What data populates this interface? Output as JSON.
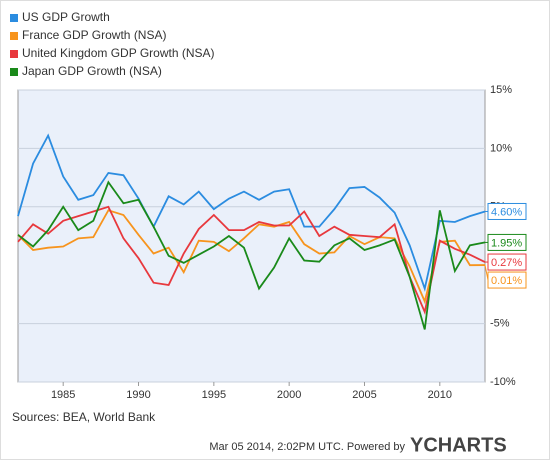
{
  "chart_data": {
    "type": "line",
    "x": [
      1982,
      1983,
      1984,
      1985,
      1986,
      1987,
      1988,
      1989,
      1990,
      1991,
      1992,
      1993,
      1994,
      1995,
      1996,
      1997,
      1998,
      1999,
      2000,
      2001,
      2002,
      2003,
      2004,
      2005,
      2006,
      2007,
      2008,
      2009,
      2010,
      2011,
      2012,
      2013
    ],
    "series": [
      {
        "name": "US GDP Growth",
        "color": "#2b8ce0",
        "values": [
          4.2,
          8.7,
          11.1,
          7.6,
          5.6,
          6.0,
          7.9,
          7.7,
          5.7,
          3.3,
          5.9,
          5.2,
          6.3,
          4.8,
          5.7,
          6.3,
          5.6,
          6.3,
          6.5,
          3.3,
          3.3,
          4.8,
          6.6,
          6.7,
          5.8,
          4.5,
          1.7,
          -2.0,
          3.8,
          3.7,
          4.2,
          4.6
        ],
        "value_labels": [
          null,
          null,
          null,
          null,
          null,
          null,
          null,
          null,
          null,
          null,
          null,
          null,
          null,
          null,
          null,
          null,
          null,
          null,
          null,
          null,
          null,
          null,
          null,
          null,
          null,
          null,
          null,
          null,
          null,
          null,
          null,
          "4.60%"
        ]
      },
      {
        "name": "France GDP Growth (NSA)",
        "color": "#f7941d",
        "values": [
          2.6,
          1.3,
          1.5,
          1.6,
          2.3,
          2.4,
          4.7,
          4.3,
          2.6,
          1.0,
          1.5,
          -0.6,
          2.1,
          2.0,
          1.2,
          2.3,
          3.5,
          3.3,
          3.7,
          1.8,
          1.0,
          1.1,
          2.5,
          1.8,
          2.4,
          2.3,
          -0.1,
          -3.1,
          2.0,
          2.1,
          0.0,
          0.01
        ],
        "value_labels": [
          null,
          null,
          null,
          null,
          null,
          null,
          null,
          null,
          null,
          null,
          null,
          null,
          null,
          null,
          null,
          null,
          null,
          null,
          null,
          null,
          null,
          null,
          null,
          null,
          null,
          null,
          null,
          null,
          null,
          null,
          null,
          "0.01%"
        ]
      },
      {
        "name": "United Kingdom GDP Growth (NSA)",
        "color": "#e8383d",
        "values": [
          2.0,
          3.5,
          2.7,
          3.8,
          4.2,
          4.6,
          5.0,
          2.3,
          0.6,
          -1.5,
          -1.7,
          1.0,
          3.1,
          4.3,
          3.0,
          3.0,
          3.7,
          3.4,
          3.4,
          4.6,
          2.5,
          3.3,
          2.6,
          2.5,
          2.4,
          3.5,
          -1.0,
          -4.0,
          2.1,
          1.4,
          0.9,
          0.27
        ],
        "value_labels": [
          null,
          null,
          null,
          null,
          null,
          null,
          null,
          null,
          null,
          null,
          null,
          null,
          null,
          null,
          null,
          null,
          null,
          null,
          null,
          null,
          null,
          null,
          null,
          null,
          null,
          null,
          null,
          null,
          null,
          null,
          null,
          "0.27%"
        ]
      },
      {
        "name": "Japan GDP Growth (NSA)",
        "color": "#1a8a1a",
        "values": [
          2.6,
          1.6,
          3.0,
          5.0,
          3.0,
          3.8,
          7.1,
          5.3,
          5.6,
          3.3,
          0.8,
          0.2,
          0.9,
          1.6,
          2.5,
          1.5,
          -2.0,
          -0.2,
          2.3,
          0.4,
          0.3,
          1.7,
          2.3,
          1.3,
          1.7,
          2.2,
          -1.0,
          -5.5,
          4.7,
          -0.5,
          1.7,
          1.95
        ],
        "value_labels": [
          null,
          null,
          null,
          null,
          null,
          null,
          null,
          null,
          null,
          null,
          null,
          null,
          null,
          null,
          null,
          null,
          null,
          null,
          null,
          null,
          null,
          null,
          null,
          null,
          null,
          null,
          null,
          null,
          null,
          null,
          null,
          "1.95%"
        ]
      }
    ],
    "xlim": [
      1982,
      2013
    ],
    "xticks": [
      1985,
      1990,
      1995,
      2000,
      2005,
      2010
    ],
    "ylim": [
      -10,
      15
    ],
    "yticks": [
      {
        "value": -10,
        "label": "-10%"
      },
      {
        "value": -5,
        "label": "-5%"
      },
      {
        "value": 5,
        "label": "5%"
      },
      {
        "value": 10,
        "label": "10%"
      },
      {
        "value": 15,
        "label": "15%"
      }
    ],
    "grid": true,
    "legend": "top-left",
    "source": "Sources: BEA, World Bank",
    "footer": "Mar 05 2014, 2:02PM UTC. Powered by",
    "brand": "YCHARTS"
  }
}
